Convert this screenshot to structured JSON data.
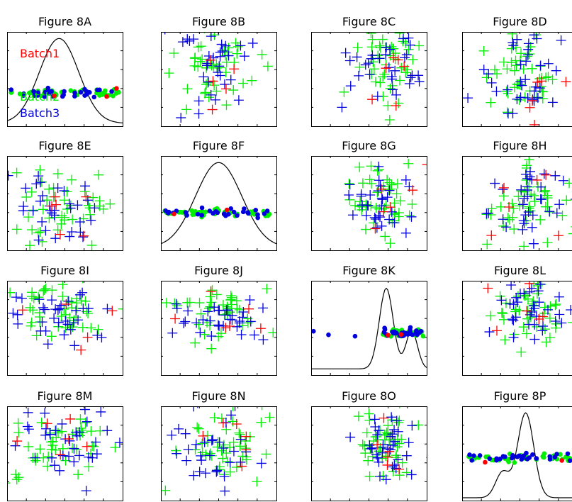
{
  "figure": {
    "colors": {
      "batch1": "#ff0000",
      "batch2": "#00ee00",
      "batch3": "#0000dd",
      "axis": "#000000",
      "density": "#000000"
    },
    "legend": [
      {
        "name": "Batch1",
        "color": "#ff0000"
      },
      {
        "name": "Batch2",
        "color": "#00ee00"
      },
      {
        "name": "Batch3",
        "color": "#0000dd"
      }
    ]
  },
  "chart_data": [
    {
      "title": "Figure 8A",
      "type": "density-strip",
      "legend_placement": "left",
      "density_peak": 0.45,
      "density_width": 0.17,
      "strip_y": 0.65,
      "series": [
        {
          "name": "Batch2",
          "count": 40
        },
        {
          "name": "Batch3",
          "count": 30
        },
        {
          "name": "Batch1",
          "count": 3
        }
      ]
    },
    {
      "title": "Figure 8B",
      "type": "scatter",
      "cx": 0.45,
      "cy": 0.35,
      "sx": 0.18,
      "sy": 0.22
    },
    {
      "title": "Figure 8C",
      "type": "scatter",
      "cx": 0.65,
      "cy": 0.35,
      "sx": 0.15,
      "sy": 0.22
    },
    {
      "title": "Figure 8D",
      "type": "scatter",
      "cx": 0.55,
      "cy": 0.45,
      "sx": 0.15,
      "sy": 0.2
    },
    {
      "title": "Figure 8E",
      "type": "scatter",
      "cx": 0.45,
      "cy": 0.55,
      "sx": 0.2,
      "sy": 0.22
    },
    {
      "title": "Figure 8F",
      "type": "density-strip",
      "density_peak": 0.5,
      "density_width": 0.2,
      "strip_y": 0.6,
      "series": [
        {
          "name": "Batch2",
          "count": 40
        },
        {
          "name": "Batch3",
          "count": 30
        },
        {
          "name": "Batch1",
          "count": 2
        }
      ]
    },
    {
      "title": "Figure 8G",
      "type": "scatter",
      "cx": 0.6,
      "cy": 0.45,
      "sx": 0.15,
      "sy": 0.25
    },
    {
      "title": "Figure 8H",
      "type": "scatter",
      "cx": 0.55,
      "cy": 0.5,
      "sx": 0.17,
      "sy": 0.22
    },
    {
      "title": "Figure 8I",
      "type": "scatter",
      "cx": 0.45,
      "cy": 0.35,
      "sx": 0.2,
      "sy": 0.18
    },
    {
      "title": "Figure 8J",
      "type": "scatter",
      "cx": 0.5,
      "cy": 0.35,
      "sx": 0.2,
      "sy": 0.18
    },
    {
      "title": "Figure 8K",
      "type": "density-strip",
      "density_peak": 0.65,
      "density_width": 0.06,
      "strip_y": 0.55,
      "bimodal": true,
      "series": [
        {
          "name": "Batch2",
          "count": 30
        },
        {
          "name": "Batch3",
          "count": 30
        },
        {
          "name": "Batch1",
          "count": 2
        }
      ]
    },
    {
      "title": "Figure 8L",
      "type": "scatter",
      "cx": 0.6,
      "cy": 0.3,
      "sx": 0.15,
      "sy": 0.2
    },
    {
      "title": "Figure 8M",
      "type": "scatter",
      "cx": 0.45,
      "cy": 0.4,
      "sx": 0.22,
      "sy": 0.2
    },
    {
      "title": "Figure 8N",
      "type": "scatter",
      "cx": 0.5,
      "cy": 0.4,
      "sx": 0.22,
      "sy": 0.2
    },
    {
      "title": "Figure 8O",
      "type": "scatter",
      "cx": 0.65,
      "cy": 0.4,
      "sx": 0.12,
      "sy": 0.2
    },
    {
      "title": "Figure 8P",
      "type": "density-strip",
      "density_peak": 0.55,
      "density_width": 0.07,
      "strip_y": 0.55,
      "bimodal_left": true,
      "series": [
        {
          "name": "Batch2",
          "count": 40
        },
        {
          "name": "Batch3",
          "count": 30
        },
        {
          "name": "Batch1",
          "count": 2
        }
      ]
    }
  ]
}
